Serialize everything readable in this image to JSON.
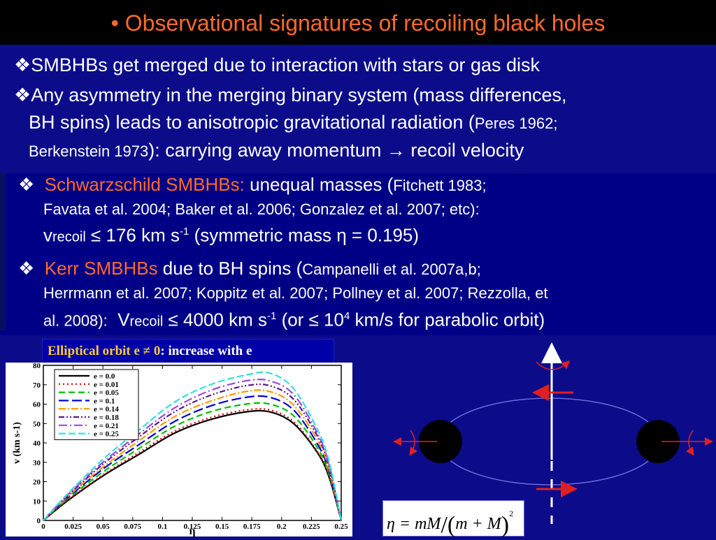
{
  "title": "• Observational signatures of recoiling black holes",
  "bullets": {
    "b1": {
      "marker": "❖",
      "text": "SMBHBs get merged due to interaction with stars or gas disk"
    },
    "b2": {
      "marker": "❖",
      "line1": "Any asymmetry in the merging binary system (mass differences,",
      "line2_main": "BH spins) leads to anisotropic gravitational radiation (",
      "line2_ref": "Peres 1962;",
      "line3_ref": "Berkenstein 1973",
      "line3_main": "): carrying away momentum → recoil velocity"
    }
  },
  "schwarzschild": {
    "marker": "❖",
    "label": "Schwarzschild SMBHBs:",
    "text": " unequal masses (",
    "ref1": "Fitchett 1983;",
    "line2": "Favata et al. 2004; Baker et al. 2006; Gonzalez et al. 2007; etc):",
    "v": "v",
    "v_sub": "recoil",
    "rel": " ≤ 176 km s",
    "exp": "-1",
    "tail": " (symmetric mass η = 0.195)"
  },
  "kerr": {
    "marker": "❖",
    "label": "Kerr SMBHBs",
    "text": " due to BH spins (",
    "ref1": "Campanelli et al. 2007a,b;",
    "line2": "Herrmann et al. 2007; Koppitz et al. 2007; Pollney et al. 2007; Rezzolla, et",
    "line3_ref": "al. 2008):",
    "V": "V",
    "V_sub": "recoil",
    "rel": " ≤ 4000 km s",
    "exp": "-1",
    "mid": " (or ≤ 10",
    "exp2": "4",
    "tail": " km/s for parabolic orbit)"
  },
  "caption": {
    "part1": "Elliptical orbit e ≠ 0",
    "part2": ": increase with e"
  },
  "equation": {
    "lhs": "η = mM",
    "den": "m + M",
    "pow": "2"
  },
  "chart_data": {
    "type": "line",
    "xlabel": "η",
    "ylabel": "v (km s-1)",
    "xlim": [
      0,
      0.25
    ],
    "ylim": [
      0,
      80
    ],
    "xticks": [
      "0",
      "0.025",
      "0.05",
      "0.075",
      "0.1",
      "0.125",
      "0.15",
      "0.175",
      "0.2",
      "0.225",
      "0.25"
    ],
    "yticks": [
      "0",
      "10",
      "20",
      "30",
      "40",
      "50",
      "60",
      "70",
      "80"
    ],
    "legend_position": "top-left",
    "x": [
      0,
      0.02,
      0.05,
      0.08,
      0.11,
      0.14,
      0.17,
      0.19,
      0.21,
      0.23,
      0.24,
      0.25
    ],
    "series": [
      {
        "name": "e = 0.0",
        "color": "#000000",
        "dash": "",
        "values": [
          0,
          10,
          23,
          34,
          45,
          52,
          56,
          56,
          50,
          35,
          22,
          0
        ]
      },
      {
        "name": "e = 0.01",
        "color": "#e00000",
        "dash": "2,4",
        "values": [
          0,
          10.3,
          23.5,
          35,
          46,
          53,
          57,
          57,
          51,
          35.5,
          22.5,
          0
        ]
      },
      {
        "name": "e = 0.05",
        "color": "#00c000",
        "dash": "9,5",
        "values": [
          0,
          11,
          25,
          37,
          48.5,
          56,
          60,
          60,
          54,
          37.5,
          23.5,
          0
        ]
      },
      {
        "name": "e = 0.1",
        "color": "#0000e0",
        "dash": "14,5",
        "values": [
          0,
          11.5,
          26.5,
          39,
          51,
          59,
          63.5,
          63.5,
          57,
          39.5,
          25,
          0
        ]
      },
      {
        "name": "e = 0.14",
        "color": "#ff9900",
        "dash": "10,3,2,3",
        "values": [
          0,
          12,
          27.5,
          41,
          53.5,
          61.5,
          66.5,
          66.5,
          59.5,
          41.5,
          26,
          0
        ]
      },
      {
        "name": "e = 0.18",
        "color": "#5a1a8a",
        "dash": "8,3,2,3,2,3",
        "values": [
          0,
          12.5,
          29,
          43,
          56,
          64.5,
          69.5,
          69.5,
          62.5,
          43.5,
          27.5,
          0
        ]
      },
      {
        "name": "e = 0.21",
        "color": "#9a4ae0",
        "dash": "12,4,2,4",
        "values": [
          0,
          13,
          30,
          44.5,
          58,
          67,
          72,
          72,
          65,
          45,
          28.5,
          0
        ]
      },
      {
        "name": "e = 0.25",
        "color": "#33e0e0",
        "dash": "10,4",
        "values": [
          0,
          13.5,
          31.5,
          46.5,
          61,
          70,
          75,
          76,
          68,
          47,
          30,
          0
        ]
      }
    ]
  }
}
